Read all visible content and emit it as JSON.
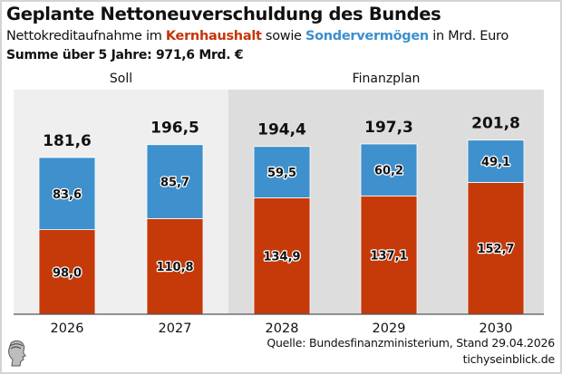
{
  "header": {
    "title": "Geplante Nettoneuverschuldung des Bundes",
    "subtitle_prefix": "Nettokreditaufnahme im ",
    "subtitle_kern": "Kernhaushalt",
    "subtitle_mid": " sowie ",
    "subtitle_sonder": "Sondervermögen",
    "subtitle_suffix": " in Mrd. Euro",
    "sum_line": "Summe über 5 Jahre: 971,6 Mrd. €"
  },
  "footer": {
    "source": "Quelle: Bundesfinanzministerium, Stand 29.04.2026",
    "site": "tichyseinblick.de",
    "logo_icon": "hermes-head-logo-icon"
  },
  "colors": {
    "kernhaushalt": "#c63a0a",
    "sondervermoegen": "#3f91cd",
    "soll_bg": "#efefef",
    "finanzplan_bg": "#dddddd"
  },
  "chart_data": {
    "type": "bar",
    "stacked": true,
    "title": "Geplante Nettoneuverschuldung des Bundes",
    "xlabel": "",
    "ylabel": "Mrd. Euro",
    "ylim": [
      0,
      210
    ],
    "grid": false,
    "categories": [
      "2026",
      "2027",
      "2028",
      "2029",
      "2030"
    ],
    "groups": [
      {
        "label": "Soll",
        "categories": [
          "2026",
          "2027"
        ]
      },
      {
        "label": "Finanzplan",
        "categories": [
          "2028",
          "2029",
          "2030"
        ]
      }
    ],
    "series": [
      {
        "name": "Kernhaushalt",
        "values": [
          98.0,
          110.8,
          134.9,
          137.1,
          152.7
        ],
        "labels": [
          "98,0",
          "110,8",
          "134,9",
          "137,1",
          "152,7"
        ]
      },
      {
        "name": "Sondervermögen",
        "values": [
          83.6,
          85.7,
          59.5,
          60.2,
          49.1
        ],
        "labels": [
          "83,6",
          "85,7",
          "59,5",
          "60,2",
          "49,1"
        ]
      }
    ],
    "totals": [
      181.6,
      196.5,
      194.4,
      197.3,
      201.8
    ],
    "total_labels": [
      "181,6",
      "196,5",
      "194,4",
      "197,3",
      "201,8"
    ],
    "legend": "in-subtitle"
  }
}
